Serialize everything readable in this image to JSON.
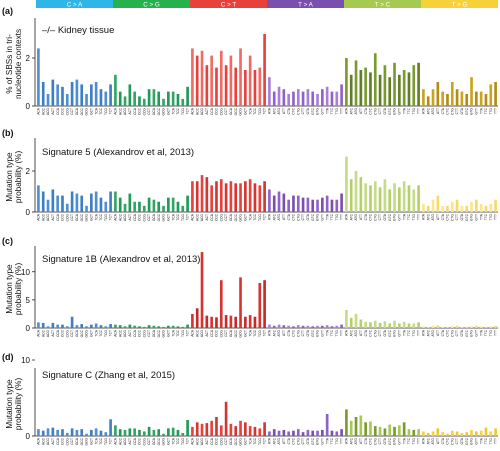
{
  "figure": {
    "mutation_types": [
      {
        "label": "C > A",
        "color": "#2fb6e8"
      },
      {
        "label": "C > G",
        "color": "#27b14c"
      },
      {
        "label": "C > T",
        "color": "#e8413c"
      },
      {
        "label": "T > A",
        "color": "#7b4fae"
      },
      {
        "label": "T > C",
        "color": "#a6c94f"
      },
      {
        "label": "T > G",
        "color": "#f7d13a"
      }
    ],
    "contexts": [
      [
        "ACA",
        "ACC",
        "ACG",
        "ACT",
        "CCA",
        "CCC",
        "CCG",
        "CCT",
        "GCA",
        "GCC",
        "GCG",
        "GCT",
        "TCA",
        "TCC",
        "TCG",
        "TCT"
      ],
      [
        "ACA",
        "ACC",
        "ACG",
        "ACT",
        "CCA",
        "CCC",
        "CCG",
        "CCT",
        "GCA",
        "GCC",
        "GCG",
        "GCT",
        "TCA",
        "TCC",
        "TCG",
        "TCT"
      ],
      [
        "ACA",
        "ACC",
        "ACG",
        "ACT",
        "CCA",
        "CCC",
        "CCG",
        "CCT",
        "GCA",
        "GCC",
        "GCG",
        "GCT",
        "TCA",
        "TCC",
        "TCG",
        "TCT"
      ],
      [
        "ATA",
        "ATC",
        "ATG",
        "ATT",
        "CTA",
        "CTC",
        "CTG",
        "CTT",
        "GTA",
        "GTC",
        "GTG",
        "GTT",
        "TTA",
        "TTC",
        "TTG",
        "TTT"
      ],
      [
        "ATA",
        "ATC",
        "ATG",
        "ATT",
        "CTA",
        "CTC",
        "CTG",
        "CTT",
        "GTA",
        "GTC",
        "GTG",
        "GTT",
        "TTA",
        "TTC",
        "TTG",
        "TTT"
      ],
      [
        "ATA",
        "ATC",
        "ATG",
        "ATT",
        "CTA",
        "CTC",
        "CTG",
        "CTT",
        "GTA",
        "GTC",
        "GTG",
        "GTT",
        "TTA",
        "TTC",
        "TTG",
        "TTT"
      ]
    ]
  },
  "chart_data": [
    {
      "type": "bar",
      "panel_label": "(a)",
      "title": "–/– Kidney tissue",
      "ylabel_lines": [
        "% of SBSs in tri-",
        "nucleotide contexts"
      ],
      "yticks": [
        0,
        2
      ],
      "ylim": [
        0,
        4
      ],
      "series_colors": {
        "C > A": [
          "#4f8fcf",
          "#3d7fc4"
        ],
        "C > G": [
          "#33a563",
          "#1f9a57"
        ],
        "C > T": [
          "#f06b63",
          "#e8413c"
        ],
        "T > A": [
          "#a77fd8",
          "#8f62c9"
        ],
        "T > C": [
          "#7a9a30",
          "#5f7e25"
        ],
        "T > G": [
          "#caa41a",
          "#b58b16"
        ]
      },
      "values": [
        [
          2.4,
          1.0,
          0.5,
          1.1,
          0.9,
          0.8,
          0.5,
          1.0,
          1.1,
          0.9,
          0.5,
          0.9,
          1.0,
          0.7,
          0.6,
          0.9
        ],
        [
          1.3,
          0.6,
          0.4,
          0.9,
          0.6,
          0.4,
          0.3,
          0.7,
          0.7,
          0.6,
          0.3,
          0.6,
          0.6,
          0.5,
          0.3,
          0.8
        ],
        [
          2.4,
          2.1,
          2.3,
          1.7,
          2.1,
          1.6,
          2.3,
          1.7,
          2.1,
          1.6,
          2.4,
          1.5,
          2.1,
          1.5,
          1.6,
          3.0
        ],
        [
          1.2,
          0.6,
          0.8,
          0.7,
          0.5,
          0.6,
          0.7,
          0.6,
          0.7,
          0.6,
          0.5,
          0.7,
          0.8,
          0.6,
          0.6,
          0.9
        ],
        [
          2.0,
          1.3,
          1.9,
          1.5,
          1.6,
          1.4,
          2.2,
          1.3,
          1.7,
          1.2,
          1.8,
          1.3,
          1.5,
          1.4,
          1.7,
          1.8
        ],
        [
          0.7,
          0.4,
          0.7,
          1.0,
          0.6,
          0.5,
          1.0,
          0.7,
          0.6,
          0.5,
          1.2,
          0.6,
          0.6,
          0.5,
          0.9,
          1.0
        ]
      ]
    },
    {
      "type": "bar",
      "panel_label": "(b)",
      "title": "Signature 5 (Alexandrov et al, 2013)",
      "ylabel_lines": [
        "Mutation type",
        "probability (%)"
      ],
      "yticks": [
        0,
        2
      ],
      "ylim": [
        0,
        4
      ],
      "series_colors": {
        "C > A": [
          "#4f8fcf",
          "#3d7fc4"
        ],
        "C > G": [
          "#33a563",
          "#1f9a57"
        ],
        "C > T": [
          "#e8413c",
          "#d63430"
        ],
        "T > A": [
          "#8f62c9",
          "#7b4fae"
        ],
        "T > C": [
          "#c5db86",
          "#b5cf6a"
        ],
        "T > G": [
          "#fbe68a",
          "#f7d96b"
        ]
      },
      "values": [
        [
          1.3,
          1.0,
          0.6,
          1.1,
          0.8,
          0.8,
          0.4,
          1.0,
          0.9,
          0.8,
          0.3,
          0.9,
          1.0,
          0.7,
          0.5,
          1.0
        ],
        [
          1.0,
          0.7,
          0.4,
          0.9,
          0.5,
          0.5,
          0.3,
          0.7,
          0.6,
          0.5,
          0.3,
          0.7,
          0.7,
          0.5,
          0.3,
          0.8
        ],
        [
          1.5,
          1.5,
          1.8,
          1.7,
          1.3,
          1.5,
          1.6,
          1.4,
          1.5,
          1.4,
          1.4,
          1.5,
          1.6,
          1.4,
          1.3,
          1.5
        ],
        [
          1.1,
          0.8,
          1.0,
          0.9,
          0.6,
          0.8,
          0.8,
          0.7,
          0.7,
          0.6,
          0.6,
          0.7,
          0.8,
          0.6,
          0.6,
          0.9
        ],
        [
          2.7,
          1.6,
          2.0,
          1.7,
          1.4,
          1.3,
          1.5,
          1.2,
          1.6,
          1.1,
          1.4,
          1.2,
          1.5,
          1.3,
          1.1,
          1.3
        ],
        [
          0.4,
          0.3,
          0.6,
          0.8,
          0.3,
          0.3,
          0.5,
          0.6,
          0.3,
          0.3,
          0.5,
          0.6,
          0.4,
          0.3,
          0.4,
          0.6
        ]
      ]
    },
    {
      "type": "bar",
      "panel_label": "(c)",
      "title": "Signature 1B (Alexandrov et al, 2013)",
      "ylabel_lines": [
        "Mutation type",
        "probability (%)"
      ],
      "yticks": [
        0,
        5,
        10
      ],
      "ylim": [
        0,
        16
      ],
      "series_colors": {
        "C > A": [
          "#4f8fcf",
          "#3d7fc4"
        ],
        "C > G": [
          "#33a563",
          "#1f9a57"
        ],
        "C > T": [
          "#d63430",
          "#c42a27"
        ],
        "T > A": [
          "#a77fd8",
          "#8f62c9"
        ],
        "T > C": [
          "#c5db86",
          "#b5cf6a"
        ],
        "T > G": [
          "#fbe68a",
          "#f7d96b"
        ]
      },
      "values": [
        [
          1.0,
          0.9,
          0.3,
          0.9,
          0.6,
          0.6,
          0.3,
          2.0,
          0.5,
          0.7,
          0.3,
          0.6,
          0.8,
          0.5,
          0.3,
          0.7
        ],
        [
          0.6,
          0.5,
          0.3,
          0.6,
          0.4,
          0.3,
          0.2,
          0.5,
          0.4,
          0.3,
          0.2,
          0.4,
          0.4,
          0.3,
          0.2,
          0.6
        ],
        [
          2.5,
          3.5,
          13.5,
          2.2,
          2.0,
          1.9,
          8.5,
          2.3,
          2.2,
          2.0,
          9.0,
          2.0,
          2.3,
          2.0,
          8.0,
          8.5
        ],
        [
          0.6,
          0.4,
          0.6,
          0.5,
          0.4,
          0.3,
          0.5,
          0.4,
          0.4,
          0.3,
          0.4,
          0.4,
          0.5,
          0.3,
          0.4,
          0.6
        ],
        [
          3.2,
          1.8,
          2.5,
          1.5,
          1.1,
          1.0,
          1.3,
          0.9,
          1.2,
          0.8,
          1.3,
          0.8,
          1.1,
          0.8,
          0.8,
          1.0
        ],
        [
          0.3,
          0.2,
          0.4,
          0.5,
          0.2,
          0.2,
          0.3,
          0.4,
          0.2,
          0.2,
          0.3,
          0.4,
          0.3,
          0.2,
          0.3,
          0.4
        ]
      ]
    },
    {
      "type": "bar",
      "panel_label": "(d)",
      "title": "Signature C (Zhang et al, 2015)",
      "ylabel_lines": [
        "Mutation type",
        "probability (%)"
      ],
      "yticks": [
        0,
        10
      ],
      "ylim": [
        0,
        10
      ],
      "series_colors": {
        "C > A": [
          "#4f8fcf",
          "#3d7fc4"
        ],
        "C > G": [
          "#33a563",
          "#1f9a57"
        ],
        "C > T": [
          "#e8413c",
          "#d63430"
        ],
        "T > A": [
          "#8f62c9",
          "#7b4fae"
        ],
        "T > C": [
          "#7a9a30",
          "#a6c94f"
        ],
        "T > G": [
          "#f7d13a",
          "#f3c722"
        ]
      },
      "values": [
        [
          0.9,
          0.7,
          1.0,
          1.1,
          0.8,
          0.9,
          0.4,
          1.0,
          0.8,
          0.9,
          0.3,
          0.8,
          1.0,
          0.7,
          0.5,
          2.2
        ],
        [
          1.4,
          0.9,
          0.8,
          1.0,
          1.0,
          0.8,
          0.6,
          1.2,
          0.8,
          0.9,
          0.3,
          1.0,
          1.1,
          0.8,
          0.4,
          2.1
        ],
        [
          1.2,
          1.8,
          1.6,
          1.7,
          2.0,
          2.5,
          1.4,
          4.5,
          1.6,
          1.3,
          2.0,
          1.8,
          1.3,
          1.2,
          1.0,
          1.8
        ],
        [
          0.6,
          0.9,
          0.7,
          0.8,
          0.6,
          0.7,
          0.9,
          0.5,
          0.8,
          0.7,
          0.7,
          0.8,
          2.9,
          0.7,
          0.6,
          0.9
        ],
        [
          3.5,
          2.0,
          2.5,
          2.7,
          1.8,
          1.9,
          1.3,
          1.2,
          1.0,
          1.5,
          1.2,
          1.4,
          1.8,
          0.9,
          0.8,
          0.9
        ],
        [
          0.6,
          0.4,
          0.6,
          1.0,
          0.5,
          0.3,
          0.7,
          0.6,
          0.4,
          0.5,
          0.8,
          0.6,
          0.7,
          1.1,
          0.6,
          1.0
        ]
      ]
    }
  ]
}
